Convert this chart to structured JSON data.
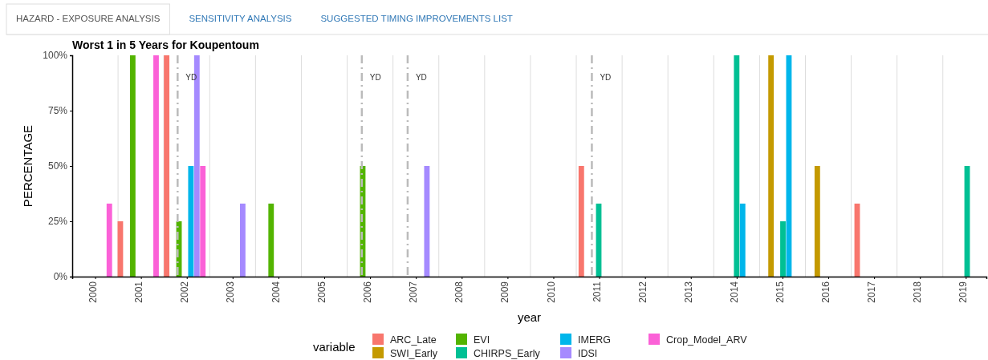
{
  "chart_data": {
    "type": "bar",
    "title": "Worst 1 in 5 Years for Koupentoum",
    "xlabel": "year",
    "ylabel": "PERCENTAGE",
    "legend_title": "variable",
    "annotations": [
      "HAZARD - EXPOSURE ANALYSIS",
      "SENSITIVITY ANALYSIS",
      "SUGGESTED TIMING IMPROVEMENTS LIST"
    ],
    "xlim": [
      1999.5,
      2019.45
    ],
    "xticks": [
      2000,
      2001,
      2002,
      2003,
      2004,
      2005,
      2006,
      2007,
      2008,
      2009,
      2010,
      2011,
      2012,
      2013,
      2014,
      2015,
      2016,
      2017,
      2018,
      2019
    ],
    "ylim": [
      0,
      100
    ],
    "yticks": [
      {
        "value": 0,
        "label": "0%"
      },
      {
        "value": 25,
        "label": "25%"
      },
      {
        "value": 50,
        "label": "50%"
      },
      {
        "value": 75,
        "label": "75%"
      },
      {
        "value": 100,
        "label": "100%"
      }
    ],
    "grid": "x",
    "legend": "bottom",
    "series": [
      {
        "name": "ARC_Late",
        "color": "#f8766d",
        "x": [
          2000.55,
          2001.56,
          2010.61,
          2016.63
        ],
        "values": [
          25,
          100,
          50,
          33
        ]
      },
      {
        "name": "SWI_Early",
        "color": "#c49a00",
        "x": [
          2014.75,
          2015.76
        ],
        "values": [
          100,
          50
        ]
      },
      {
        "name": "EVI",
        "color": "#53b400",
        "x": [
          2000.82,
          2001.83,
          2003.84,
          2005.84
        ],
        "values": [
          100,
          25,
          33,
          50
        ]
      },
      {
        "name": "CHIRPS_Early",
        "color": "#00c094",
        "x": [
          2010.99,
          2014.0,
          2015.01,
          2019.03
        ],
        "values": [
          33,
          100,
          25,
          50
        ]
      },
      {
        "name": "IMERG",
        "color": "#00b6eb",
        "x": [
          2002.09,
          2014.13,
          2015.14
        ],
        "values": [
          50,
          33,
          100
        ]
      },
      {
        "name": "IDSI",
        "color": "#a58aff",
        "x": [
          2002.22,
          2003.22,
          2007.24
        ],
        "values": [
          100,
          33,
          50
        ]
      },
      {
        "name": "Crop_Model_ARV",
        "color": "#fb61d7",
        "x": [
          2000.31,
          2001.33,
          2002.35
        ],
        "values": [
          33,
          100,
          50
        ]
      }
    ],
    "ref_lines": [
      {
        "axis": "x",
        "value": 2001.8,
        "label": "YD",
        "color": "#bbbbbb",
        "line_style": "dashed"
      },
      {
        "axis": "x",
        "value": 2005.82,
        "label": "YD",
        "color": "#bbbbbb",
        "line_style": "dashed"
      },
      {
        "axis": "x",
        "value": 2006.82,
        "label": "YD",
        "color": "#bbbbbb",
        "line_style": "dashed"
      },
      {
        "axis": "x",
        "value": 2010.84,
        "label": "YD",
        "color": "#bbbbbb",
        "line_style": "dashed"
      }
    ]
  }
}
